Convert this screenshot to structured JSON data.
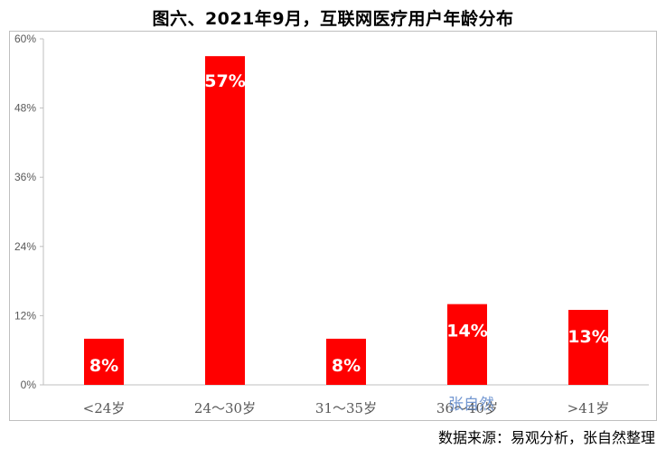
{
  "chart_data": {
    "type": "bar",
    "title": "图六、2021年9月，互联网医疗用户年龄分布",
    "categories": [
      "<24岁",
      "24～30岁",
      "31～35岁",
      "36～40岁",
      ">41岁"
    ],
    "values": [
      8,
      57,
      8,
      14,
      13
    ],
    "data_labels": [
      "8%",
      "57%",
      "8%",
      "14%",
      "13%"
    ],
    "yticks": [
      "0%",
      "12%",
      "24%",
      "36%",
      "48%",
      "60%"
    ],
    "ylim": [
      0,
      60
    ],
    "bar_color": "#ff0000",
    "grid": false,
    "legend": "none"
  },
  "source": "数据来源：易观分析，张自然整理",
  "watermark": "张自然"
}
